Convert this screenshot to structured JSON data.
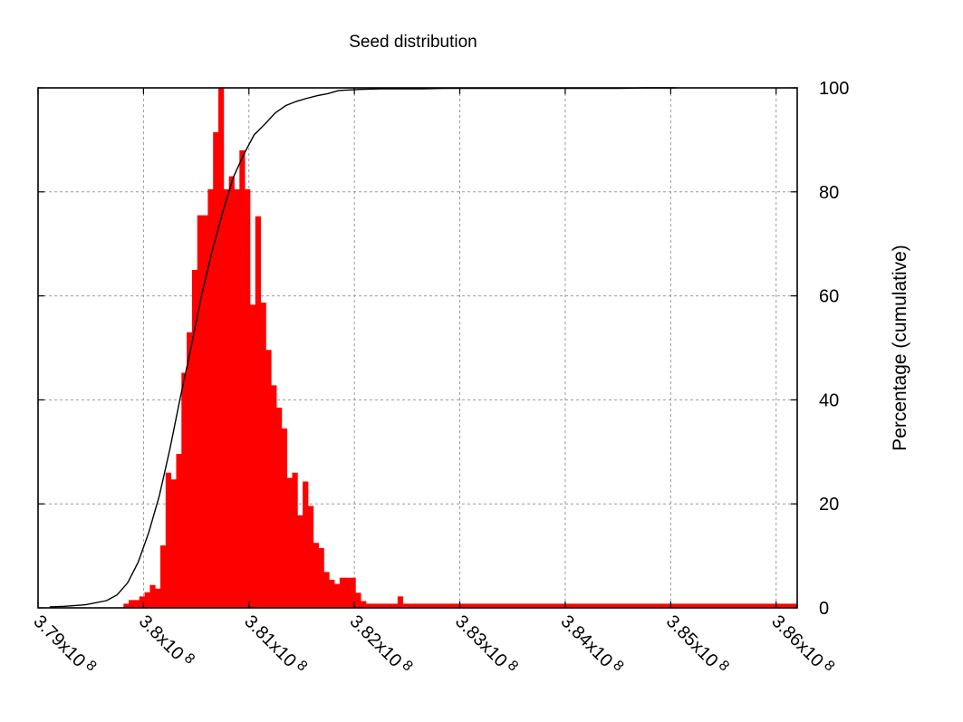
{
  "chart_data": {
    "type": "bar",
    "title": "Seed distribution",
    "xlabel": "",
    "ylabel": "Percentage (cumulative)",
    "colors": {
      "histogram": "#ff0000",
      "cumulative": "#000000",
      "grid": "#9a9a9a"
    },
    "grid": true,
    "xlim": [
      3.79,
      3.862
    ],
    "ylim": [
      0,
      100
    ],
    "x_ticks": [
      {
        "value": 3.79,
        "label": "3.79x10",
        "exp": "8"
      },
      {
        "value": 3.8,
        "label": "3.8x10",
        "exp": "8"
      },
      {
        "value": 3.81,
        "label": "3.81x10",
        "exp": "8"
      },
      {
        "value": 3.82,
        "label": "3.82x10",
        "exp": "8"
      },
      {
        "value": 3.83,
        "label": "3.83x10",
        "exp": "8"
      },
      {
        "value": 3.84,
        "label": "3.84x10",
        "exp": "8"
      },
      {
        "value": 3.85,
        "label": "3.85x10",
        "exp": "8"
      },
      {
        "value": 3.86,
        "label": "3.86x10",
        "exp": "8"
      }
    ],
    "y_ticks": [
      {
        "value": 0,
        "label": "0"
      },
      {
        "value": 20,
        "label": "20"
      },
      {
        "value": 40,
        "label": "40"
      },
      {
        "value": 60,
        "label": "60"
      },
      {
        "value": 80,
        "label": "80"
      },
      {
        "value": 100,
        "label": "100"
      }
    ],
    "series": [
      {
        "name": "histogram",
        "kind": "bar",
        "bin_width": 0.0005,
        "bins_x": [
          3.7981,
          3.7986,
          3.7991,
          3.7996,
          3.8001,
          3.8006,
          3.8011,
          3.8016,
          3.8021,
          3.8026,
          3.8031,
          3.8036,
          3.8041,
          3.8046,
          3.8051,
          3.8056,
          3.8061,
          3.8066,
          3.8071,
          3.8076,
          3.8081,
          3.8086,
          3.8091,
          3.8096,
          3.8101,
          3.8106,
          3.8111,
          3.8116,
          3.8121,
          3.8126,
          3.8131,
          3.8136,
          3.8141,
          3.8146,
          3.8151,
          3.8156,
          3.8161,
          3.8166,
          3.8171,
          3.8176,
          3.8181,
          3.8186,
          3.8191,
          3.8196,
          3.8201,
          3.8206,
          3.8211,
          3.8216,
          3.8221,
          3.8226,
          3.8231,
          3.8236,
          3.8241,
          3.8246,
          3.8251,
          3.8256,
          3.8261,
          3.8266,
          3.8271,
          3.8276,
          3.8281,
          3.8286,
          3.8291,
          3.8296,
          3.8301,
          3.8306,
          3.8311,
          3.8316,
          3.8321,
          3.8326,
          3.8331,
          3.8336,
          3.8341,
          3.8346,
          3.8351,
          3.8356,
          3.8361,
          3.8366,
          3.8371,
          3.8376,
          3.8381,
          3.8386,
          3.8391,
          3.8396,
          3.8401,
          3.8406,
          3.8411,
          3.8416,
          3.8421,
          3.8426,
          3.8431,
          3.8436,
          3.8441,
          3.8446,
          3.8451,
          3.8456,
          3.8461,
          3.8466,
          3.8471,
          3.8476,
          3.8481,
          3.8486,
          3.8491,
          3.8496,
          3.8501,
          3.8506,
          3.8511,
          3.8516,
          3.8521,
          3.8526,
          3.8531,
          3.8536,
          3.8541,
          3.8546,
          3.8551,
          3.8556,
          3.8561,
          3.8566,
          3.8571,
          3.8576,
          3.8581,
          3.8586,
          3.8591,
          3.8596,
          3.8601,
          3.8606,
          3.8611,
          3.8616
        ],
        "values": [
          0.8,
          1.5,
          1.5,
          2.2,
          3.0,
          4.4,
          3.7,
          12,
          26,
          24.7,
          29.6,
          45.2,
          53,
          65,
          75.5,
          75.5,
          80.5,
          91.5,
          100,
          80.5,
          83,
          80.5,
          88,
          80.5,
          58.3,
          75.3,
          58.7,
          49.6,
          42.8,
          38.5,
          34.5,
          25,
          26,
          17.8,
          24.3,
          19.6,
          12.5,
          11.5,
          6.9,
          5.4,
          4.6,
          5.8,
          5.8,
          5.8,
          2.9,
          1.3,
          0.8,
          0.8,
          0.8,
          0.8,
          0.8,
          0.8,
          2.2,
          0.8,
          0.8,
          0.8,
          0.8,
          0.8,
          0.8,
          0.8,
          0.8,
          0.8,
          0.8,
          0.8,
          0.8,
          0.8,
          0.8,
          0.8,
          0.8,
          0.8,
          0.8,
          0.8,
          0.8,
          0.8,
          0.8,
          0.8,
          0.8,
          0.8,
          0.8,
          0.8,
          0.8,
          0.8,
          0.8,
          0.8,
          0.8,
          0.8,
          0.8,
          0.8,
          0.8,
          0.8,
          0.8,
          0.8,
          0.8,
          0.8,
          0.8,
          0.8,
          0.8,
          0.8,
          0.8,
          0.8,
          0.8,
          0.8,
          0.8,
          0.8,
          0.8,
          0.8,
          0.8,
          0.8,
          0.8,
          0.8,
          0.8,
          0.8,
          0.8,
          0.8,
          0.8,
          0.8,
          0.8,
          0.8,
          0.8,
          0.8,
          0.8,
          0.8,
          0.8,
          0.8,
          0.8,
          0.8,
          0.8,
          0.8
        ]
      },
      {
        "name": "cumulative",
        "kind": "line",
        "x": [
          3.7911,
          3.7925,
          3.7945,
          3.7965,
          3.7975,
          3.7985,
          3.7995,
          3.8005,
          3.8015,
          3.8025,
          3.8035,
          3.8045,
          3.8055,
          3.8065,
          3.8075,
          3.8085,
          3.8095,
          3.8105,
          3.8115,
          3.8125,
          3.8135,
          3.8145,
          3.8155,
          3.8165,
          3.8175,
          3.8185,
          3.8195,
          3.8205,
          3.8225,
          3.8245,
          3.8265,
          3.8285,
          3.8305,
          3.8325,
          3.8345,
          3.8365,
          3.8385,
          3.8405,
          3.8425,
          3.845,
          3.8475,
          3.8505
        ],
        "values": [
          0.2,
          0.3,
          0.6,
          1.4,
          2.5,
          4.8,
          8.8,
          14.5,
          21.5,
          30.5,
          40.5,
          50,
          60,
          68.5,
          76,
          82.7,
          87.2,
          91,
          93,
          95.2,
          96.6,
          97.4,
          98,
          98.5,
          98.9,
          99.5,
          99.6,
          99.7,
          99.8,
          99.8,
          99.8,
          99.9,
          99.9,
          99.9,
          99.9,
          99.9,
          99.9,
          99.9,
          99.9,
          99.9,
          100,
          100
        ]
      }
    ]
  }
}
